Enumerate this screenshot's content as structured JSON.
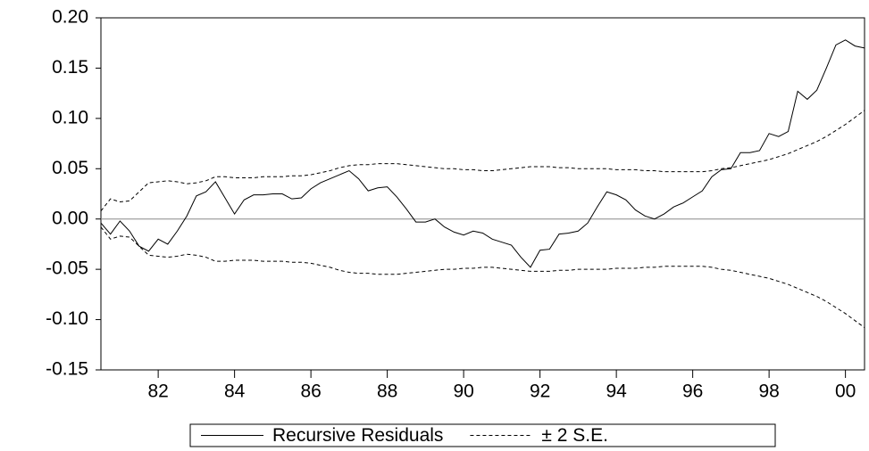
{
  "chart_data": {
    "type": "line",
    "x": [
      1980.5,
      1980.75,
      1981,
      1981.25,
      1981.5,
      1981.75,
      1982,
      1982.25,
      1982.5,
      1982.75,
      1983,
      1983.25,
      1983.5,
      1983.75,
      1984,
      1984.25,
      1984.5,
      1984.75,
      1985,
      1985.25,
      1985.5,
      1985.75,
      1986,
      1986.25,
      1986.5,
      1986.75,
      1987,
      1987.25,
      1987.5,
      1987.75,
      1988,
      1988.25,
      1988.5,
      1988.75,
      1989,
      1989.25,
      1989.5,
      1989.75,
      1990,
      1990.25,
      1990.5,
      1990.75,
      1991,
      1991.25,
      1991.5,
      1991.75,
      1992,
      1992.25,
      1992.5,
      1992.75,
      1993,
      1993.25,
      1993.5,
      1993.75,
      1994,
      1994.25,
      1994.5,
      1994.75,
      1995,
      1995.25,
      1995.5,
      1995.75,
      1996,
      1996.25,
      1996.5,
      1996.75,
      1997,
      1997.25,
      1997.5,
      1997.75,
      1998,
      1998.25,
      1998.5,
      1998.75,
      1999,
      1999.25,
      1999.5,
      1999.75,
      2000,
      2000.25,
      2000.5
    ],
    "series": [
      {
        "name": "Recursive Residuals",
        "color": "#000000",
        "dashed": false,
        "values": [
          -0.004,
          -0.015,
          -0.002,
          -0.012,
          -0.027,
          -0.032,
          -0.02,
          -0.025,
          -0.012,
          0.003,
          0.023,
          0.027,
          0.037,
          0.021,
          0.005,
          0.019,
          0.024,
          0.024,
          0.025,
          0.025,
          0.02,
          0.021,
          0.03,
          0.036,
          0.04,
          0.044,
          0.048,
          0.04,
          0.028,
          0.031,
          0.032,
          0.022,
          0.01,
          -0.003,
          -0.003,
          0.0,
          -0.008,
          -0.013,
          -0.016,
          -0.012,
          -0.014,
          -0.02,
          -0.023,
          -0.026,
          -0.038,
          -0.048,
          -0.031,
          -0.03,
          -0.015,
          -0.014,
          -0.012,
          -0.004,
          0.012,
          0.027,
          0.024,
          0.019,
          0.009,
          0.003,
          0.0,
          0.005,
          0.012,
          0.016,
          0.022,
          0.028,
          0.042,
          0.049,
          0.05,
          0.066,
          0.066,
          0.068,
          0.085,
          0.082,
          0.087,
          0.127,
          0.119,
          0.128,
          0.15,
          0.173,
          0.178,
          0.172,
          0.17
        ]
      },
      {
        "name": "± 2 S.E.",
        "color": "#000000",
        "dashed": true,
        "values": [
          0.008,
          0.02,
          0.017,
          0.018,
          0.027,
          0.036,
          0.037,
          0.038,
          0.037,
          0.035,
          0.036,
          0.038,
          0.042,
          0.042,
          0.041,
          0.041,
          0.041,
          0.042,
          0.042,
          0.042,
          0.043,
          0.043,
          0.044,
          0.046,
          0.048,
          0.051,
          0.053,
          0.054,
          0.054,
          0.055,
          0.055,
          0.055,
          0.054,
          0.053,
          0.052,
          0.051,
          0.05,
          0.05,
          0.049,
          0.049,
          0.048,
          0.048,
          0.049,
          0.05,
          0.051,
          0.052,
          0.052,
          0.052,
          0.051,
          0.051,
          0.05,
          0.05,
          0.05,
          0.05,
          0.049,
          0.049,
          0.049,
          0.048,
          0.048,
          0.047,
          0.047,
          0.047,
          0.047,
          0.047,
          0.048,
          0.05,
          0.051,
          0.053,
          0.055,
          0.057,
          0.059,
          0.062,
          0.065,
          0.069,
          0.073,
          0.077,
          0.082,
          0.088,
          0.094,
          0.101,
          0.108
        ]
      },
      {
        "color": "#000000",
        "dashed": true,
        "values": [
          -0.008,
          -0.02,
          -0.017,
          -0.018,
          -0.027,
          -0.036,
          -0.037,
          -0.038,
          -0.037,
          -0.035,
          -0.036,
          -0.038,
          -0.042,
          -0.042,
          -0.041,
          -0.041,
          -0.041,
          -0.042,
          -0.042,
          -0.042,
          -0.043,
          -0.043,
          -0.044,
          -0.046,
          -0.048,
          -0.051,
          -0.053,
          -0.054,
          -0.054,
          -0.055,
          -0.055,
          -0.055,
          -0.054,
          -0.053,
          -0.052,
          -0.051,
          -0.05,
          -0.05,
          -0.049,
          -0.049,
          -0.048,
          -0.048,
          -0.049,
          -0.05,
          -0.051,
          -0.052,
          -0.052,
          -0.052,
          -0.051,
          -0.051,
          -0.05,
          -0.05,
          -0.05,
          -0.05,
          -0.049,
          -0.049,
          -0.049,
          -0.048,
          -0.048,
          -0.047,
          -0.047,
          -0.047,
          -0.047,
          -0.047,
          -0.048,
          -0.05,
          -0.051,
          -0.053,
          -0.055,
          -0.057,
          -0.059,
          -0.062,
          -0.065,
          -0.069,
          -0.073,
          -0.077,
          -0.082,
          -0.088,
          -0.094,
          -0.101,
          -0.108
        ]
      }
    ],
    "xlim": [
      1980.5,
      2000.5
    ],
    "xticks": [
      {
        "value": 1982,
        "label": "82"
      },
      {
        "value": 1984,
        "label": "84"
      },
      {
        "value": 1986,
        "label": "86"
      },
      {
        "value": 1988,
        "label": "88"
      },
      {
        "value": 1990,
        "label": "90"
      },
      {
        "value": 1992,
        "label": "92"
      },
      {
        "value": 1994,
        "label": "94"
      },
      {
        "value": 1996,
        "label": "96"
      },
      {
        "value": 1998,
        "label": "98"
      },
      {
        "value": 2000,
        "label": "00"
      }
    ],
    "ylim": [
      -0.15,
      0.2
    ],
    "yticks": [
      {
        "value": -0.15,
        "label": "-0.15"
      },
      {
        "value": -0.1,
        "label": "-0.10"
      },
      {
        "value": -0.05,
        "label": "-0.05"
      },
      {
        "value": 0,
        "label": "0.00"
      },
      {
        "value": 0.05,
        "label": "0.05"
      },
      {
        "value": 0.1,
        "label": "0.10"
      },
      {
        "value": 0.15,
        "label": "0.15"
      },
      {
        "value": 0.2,
        "label": "0.20"
      }
    ],
    "zero_line": true,
    "legend": "bottom"
  }
}
